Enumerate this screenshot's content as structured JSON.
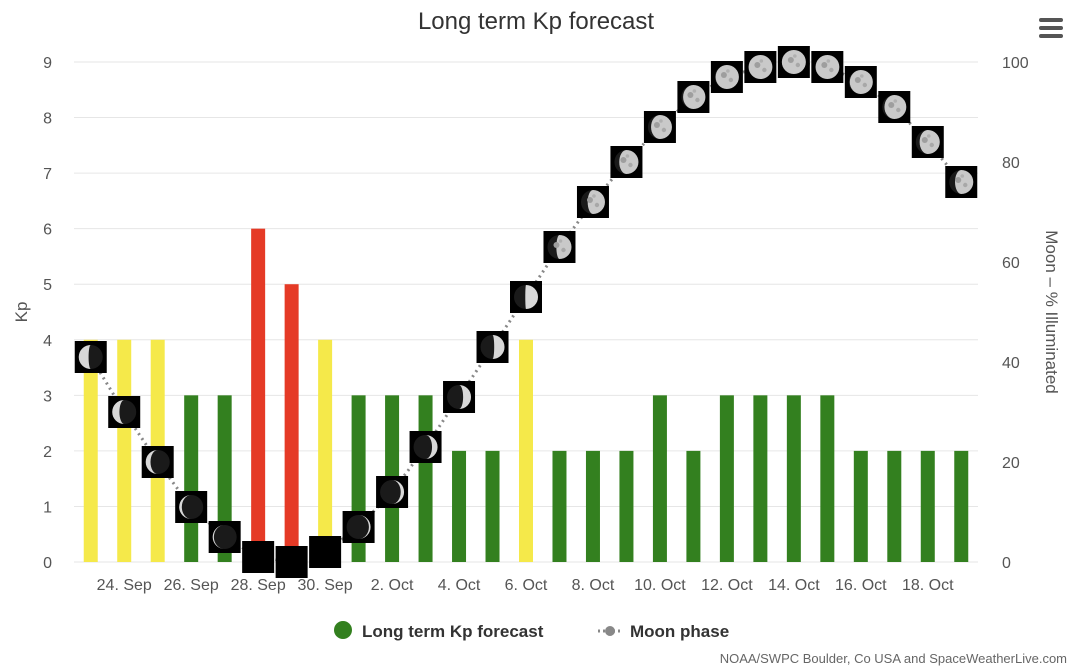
{
  "chart_data": {
    "type": "bar",
    "title": "Long term Kp forecast",
    "ylabel": "Kp",
    "y2label": "Moon – % Illuminated",
    "ylim": [
      0,
      9
    ],
    "y2lim": [
      0,
      100
    ],
    "yticks": [
      "0",
      "1",
      "2",
      "3",
      "4",
      "5",
      "6",
      "7",
      "8",
      "9"
    ],
    "y2ticks": [
      "0",
      "20",
      "40",
      "60",
      "80",
      "100"
    ],
    "xtick_labels": [
      "24. Sep",
      "26. Sep",
      "28. Sep",
      "30. Sep",
      "2. Oct",
      "4. Oct",
      "6. Oct",
      "8. Oct",
      "10. Oct",
      "12. Oct",
      "14. Oct",
      "16. Oct",
      "18. Oct"
    ],
    "grid": true,
    "legend_position": "bottom-center",
    "colors": {
      "kp_low": "#33801f",
      "kp_moderate": "#f5e94a",
      "kp_high": "#e53a26",
      "moon_line": "#888888",
      "grid": "#e6e6e6"
    },
    "series": [
      {
        "name": "Long term Kp forecast",
        "type": "bar",
        "values": [
          4,
          4,
          4,
          3,
          3,
          6,
          5,
          4,
          3,
          3,
          3,
          2,
          2,
          4,
          2,
          2,
          2,
          3,
          2,
          3,
          3,
          3,
          3,
          2,
          2,
          2,
          2
        ]
      },
      {
        "name": "Moon phase",
        "type": "line",
        "values": [
          41,
          30,
          20,
          11,
          5,
          1,
          0,
          2,
          7,
          14,
          23,
          33,
          43,
          53,
          63,
          72,
          80,
          87,
          93,
          97,
          99,
          100,
          99,
          96,
          91,
          84,
          76
        ]
      }
    ]
  },
  "menu": {
    "icon": "hamburger-menu-icon"
  },
  "credit": "NOAA/SWPC Boulder, Co USA and SpaceWeatherLive.com"
}
